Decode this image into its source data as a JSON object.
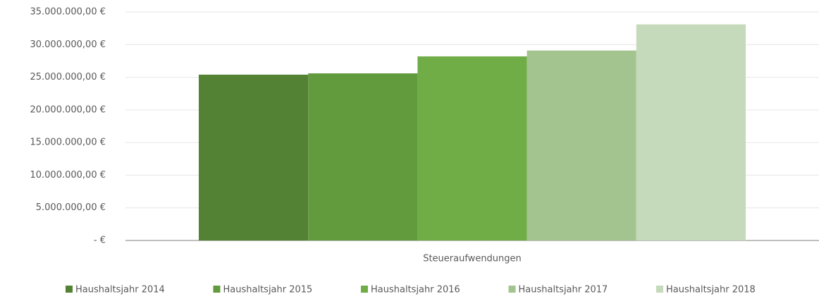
{
  "chart_data": {
    "type": "bar",
    "categories": [
      "Steueraufwendungen"
    ],
    "series": [
      {
        "name": "Haushaltsjahr 2014",
        "color": "#548235",
        "values": [
          25400000
        ]
      },
      {
        "name": "Haushaltsjahr 2015",
        "color": "#629a3e",
        "values": [
          25600000
        ]
      },
      {
        "name": "Haushaltsjahr 2016",
        "color": "#70ad47",
        "values": [
          28200000
        ]
      },
      {
        "name": "Haushaltsjahr 2017",
        "color": "#a3c48f",
        "values": [
          29100000
        ]
      },
      {
        "name": "Haushaltsjahr 2018",
        "color": "#c5d9bb",
        "values": [
          33100000
        ]
      }
    ],
    "ylim": [
      0,
      35000000
    ],
    "yticks": [
      {
        "value": 0,
        "label": "-  €"
      },
      {
        "value": 5000000,
        "label": "5.000.000,00 €"
      },
      {
        "value": 10000000,
        "label": "10.000.000,00 €"
      },
      {
        "value": 15000000,
        "label": "15.000.000,00 €"
      },
      {
        "value": 20000000,
        "label": "20.000.000,00 €"
      },
      {
        "value": 25000000,
        "label": "25.000.000,00 €"
      },
      {
        "value": 30000000,
        "label": "30.000.000,00 €"
      },
      {
        "value": 35000000,
        "label": "35.000.000,00 €"
      }
    ],
    "grid": true,
    "legend": "bottom"
  }
}
